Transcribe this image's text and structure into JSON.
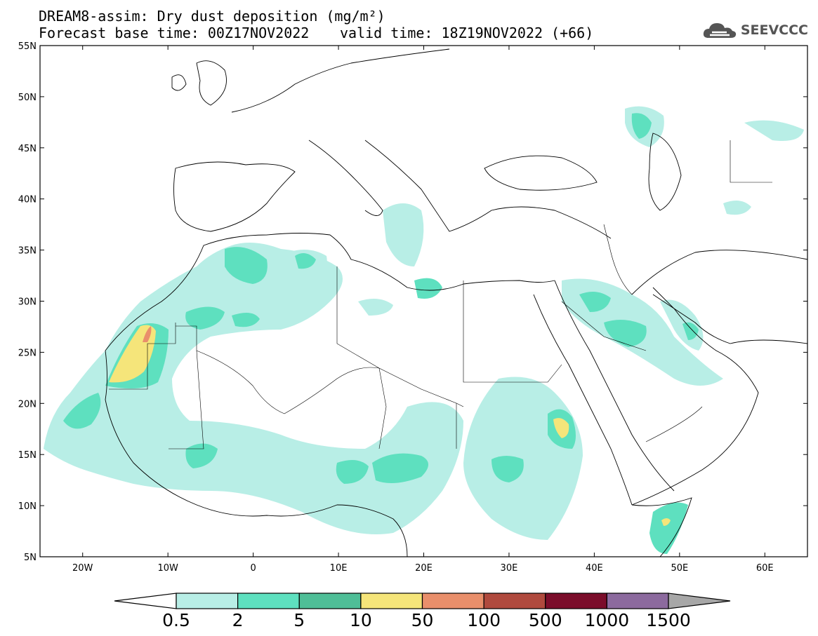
{
  "header": {
    "title": "DREAM8-assim: Dry dust deposition (mg/m²)",
    "base_time": "Forecast base time: 00Z17NOV2022",
    "valid_time": "valid time: 18Z19NOV2022 (+66)"
  },
  "logo": {
    "text": "SEEVCCC",
    "icon": "cloud-icon",
    "color": "#555555"
  },
  "map": {
    "lat_ticks": [
      "55N",
      "50N",
      "45N",
      "40N",
      "35N",
      "30N",
      "25N",
      "20N",
      "15N",
      "10N",
      "5N"
    ],
    "lon_ticks": [
      "20W",
      "10W",
      "0",
      "10E",
      "20E",
      "30E",
      "40E",
      "50E",
      "60E"
    ],
    "lon_range": [
      -25,
      65
    ],
    "lat_range": [
      5,
      55
    ]
  },
  "colorbar": {
    "labels": [
      "0.5",
      "2",
      "5",
      "10",
      "50",
      "100",
      "500",
      "1000",
      "1500"
    ],
    "colors": [
      "#ffffff",
      "#b8eee6",
      "#5ee0bf",
      "#4fbe97",
      "#f5e57a",
      "#e98f6b",
      "#b04a3e",
      "#7b0d2b",
      "#8c6a9e",
      "#a7a7a7"
    ]
  },
  "legend_colors": {
    "c1": "#b8eee6",
    "c2": "#5ee0bf",
    "c3": "#4fbe97",
    "c4": "#f5e57a",
    "c5": "#e98f6b"
  }
}
